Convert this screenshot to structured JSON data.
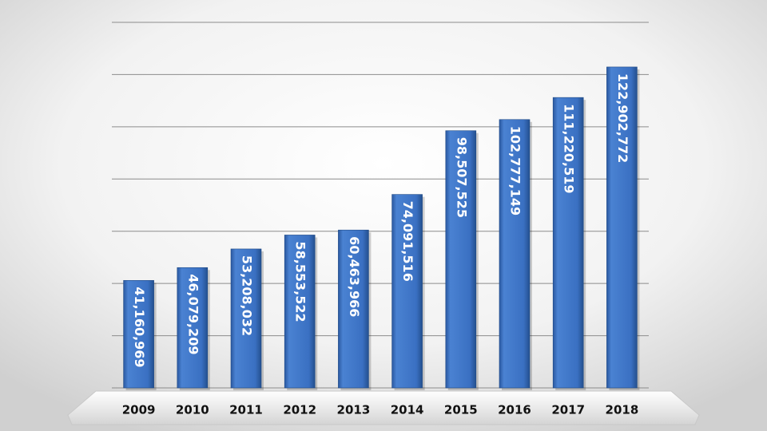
{
  "chart_data": {
    "type": "bar",
    "categories": [
      "2009",
      "2010",
      "2011",
      "2012",
      "2013",
      "2014",
      "2015",
      "2016",
      "2017",
      "2018"
    ],
    "values": [
      41160969,
      46079209,
      53208032,
      58553522,
      60463966,
      74091516,
      98507525,
      102777149,
      111220519,
      122902772
    ],
    "value_labels": [
      "41,160,969",
      "46,079,209",
      "53,208,032",
      "58,553,522",
      "60,463,966",
      "74,091,516",
      "98,507,525",
      "102,777,149",
      "111,220,519",
      "122,902,772"
    ],
    "color": "#3a6fc0",
    "ylim": [
      0,
      140000000
    ],
    "yticks": [
      0,
      20000000,
      40000000,
      60000000,
      80000000,
      100000000,
      120000000,
      140000000
    ],
    "grid": true
  }
}
